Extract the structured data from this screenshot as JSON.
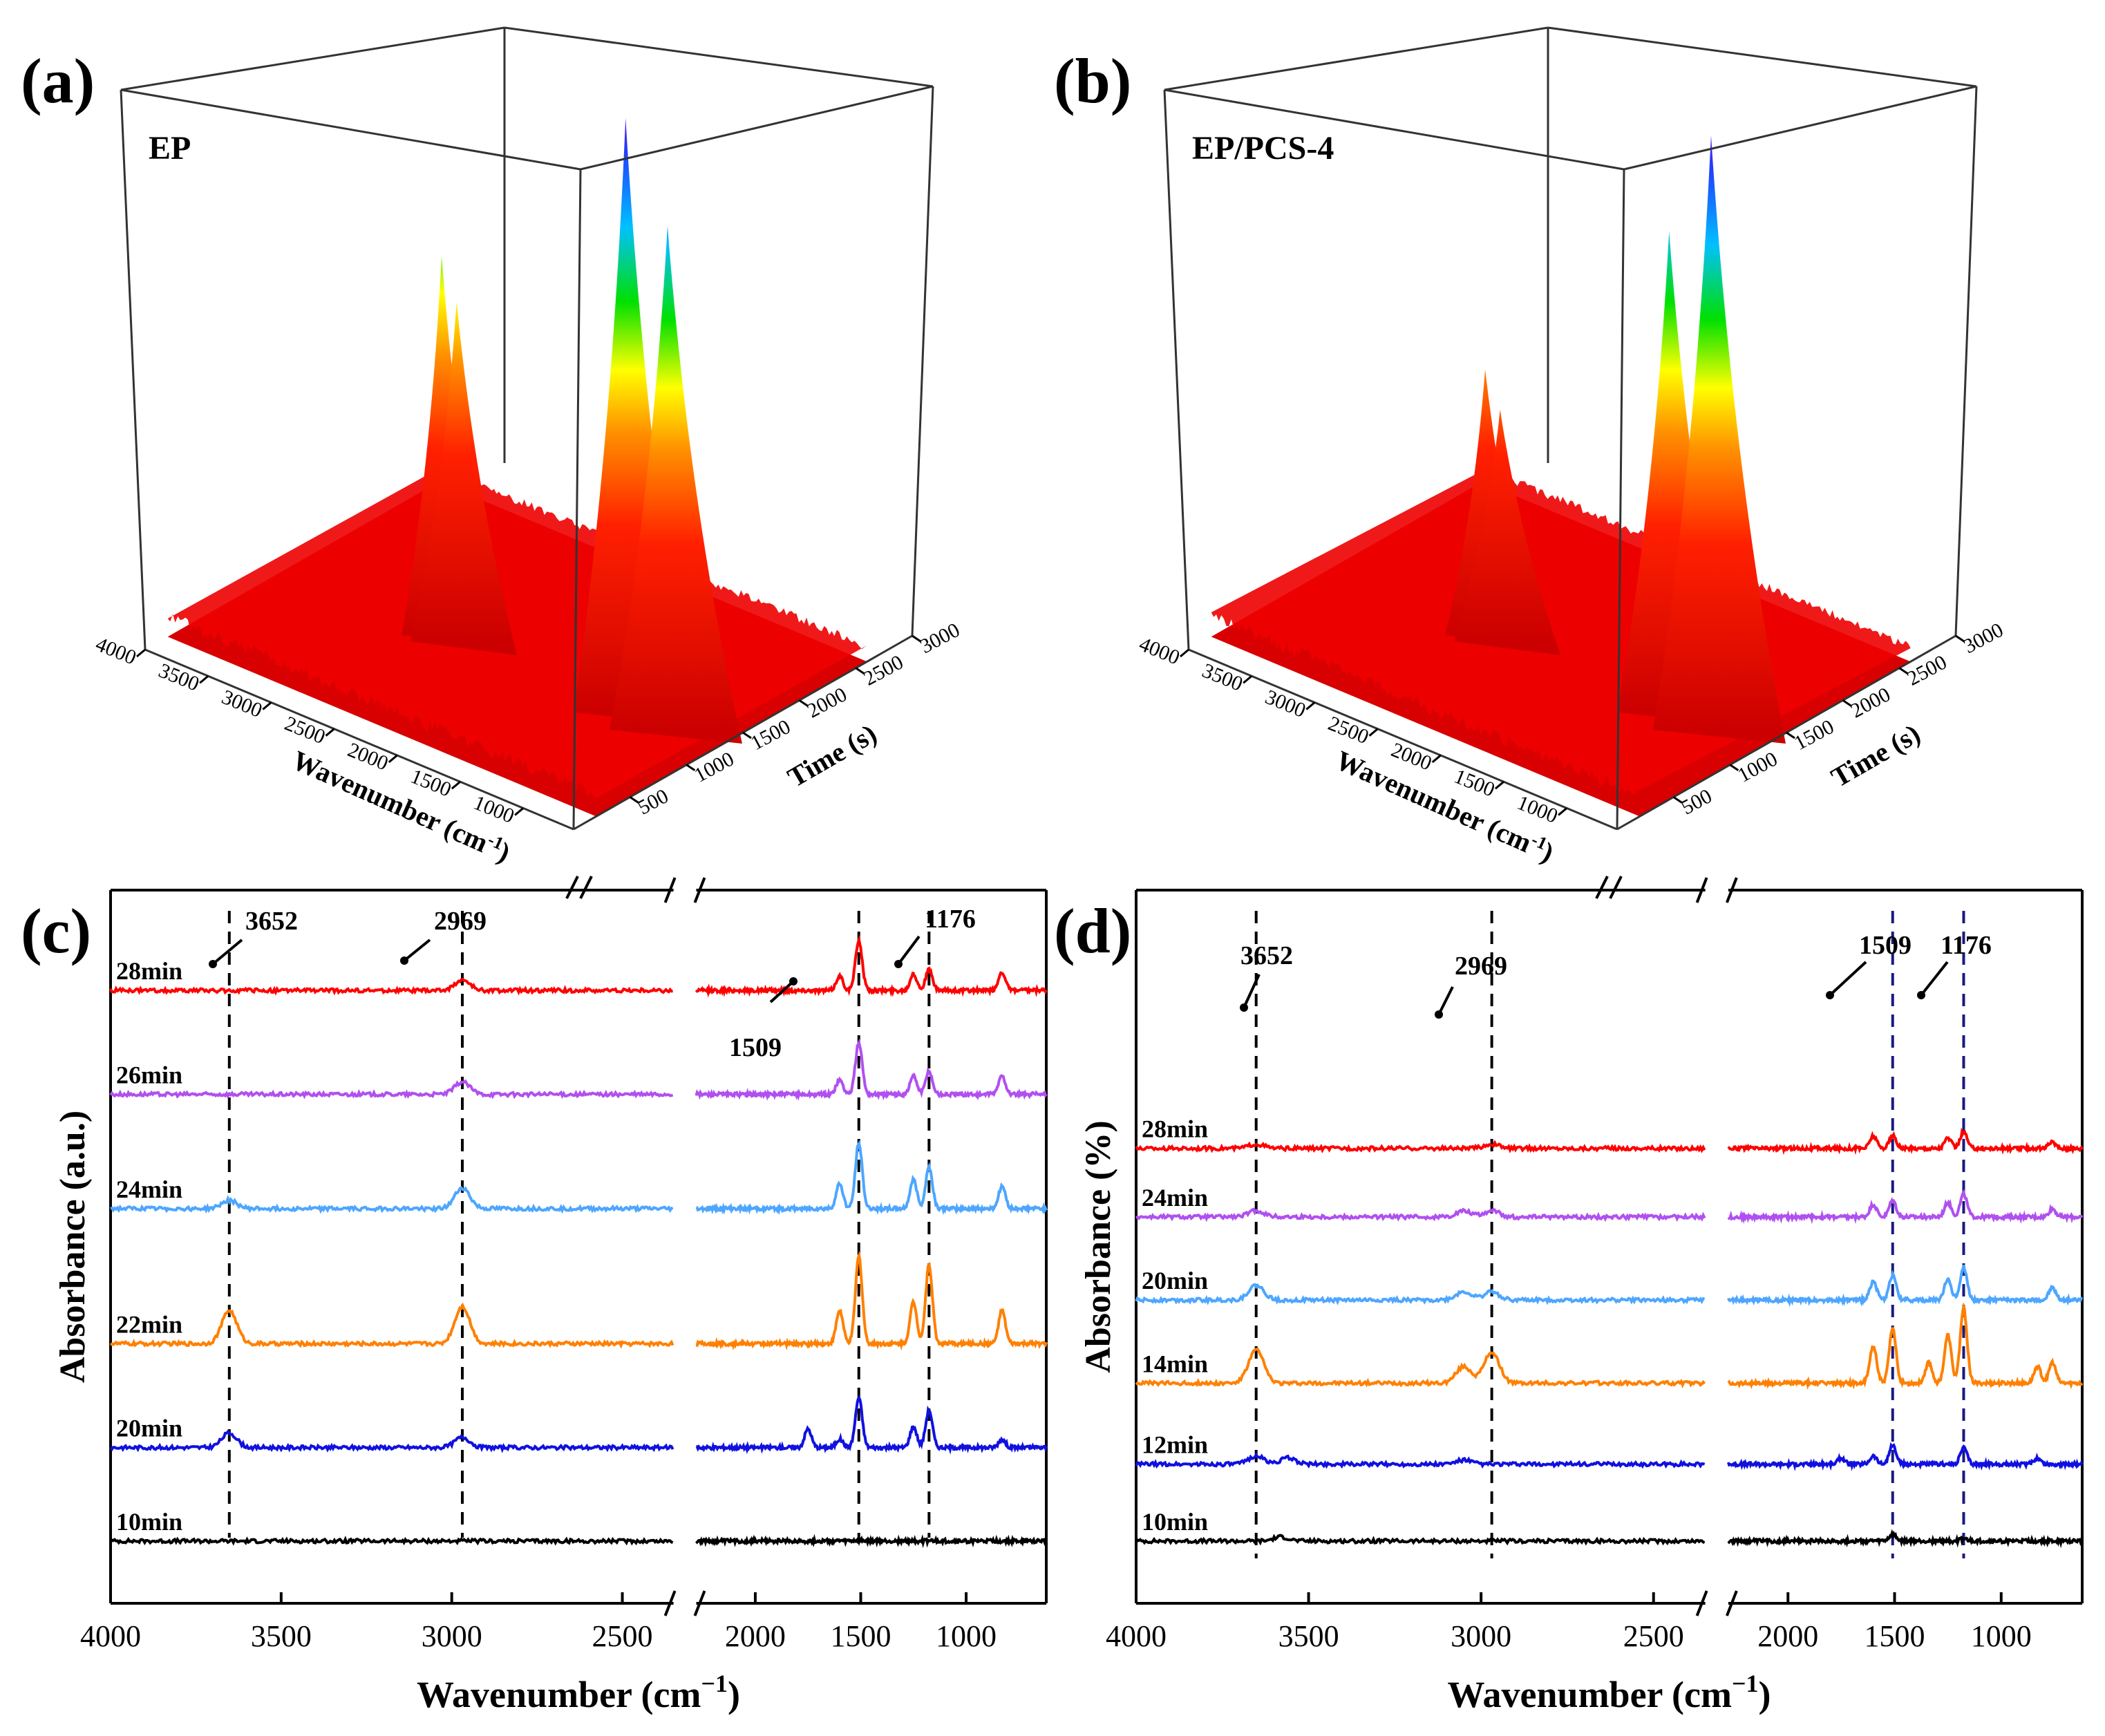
{
  "chart_data": [
    {
      "panel": "(a)",
      "type": "surface3d",
      "inset_label": "EP",
      "x_axis": {
        "label_main": "Wavenumber (cm",
        "label_sup": "-1",
        "label_end": ")",
        "ticks": [
          4000,
          3500,
          3000,
          2500,
          2000,
          1500,
          1000
        ]
      },
      "y_axis": {
        "label": "Time (s)",
        "ticks": [
          500,
          1000,
          1500,
          2000,
          2500,
          3000
        ]
      },
      "colormap": [
        "#cc0000",
        "#ff1a00",
        "#ff8c00",
        "#ffff00",
        "#00e000",
        "#00bfff",
        "#1e3cff",
        "#7a00d8"
      ],
      "peaks": [
        {
          "wavenumber": 2969,
          "relative_height": 0.62
        },
        {
          "wavenumber": 2850,
          "relative_height": 0.55
        },
        {
          "wavenumber": 1509,
          "relative_height": 1.0
        },
        {
          "wavenumber": 1176,
          "relative_height": 0.84
        }
      ]
    },
    {
      "panel": "(b)",
      "type": "surface3d",
      "inset_label": "EP/PCS-4",
      "x_axis": {
        "label_main": "Wavenumber (cm",
        "label_sup": "-1",
        "label_end": ")",
        "ticks": [
          4000,
          3500,
          3000,
          2500,
          2000,
          1500,
          1000
        ]
      },
      "y_axis": {
        "label": "Time (s)",
        "ticks": [
          500,
          1000,
          1500,
          2000,
          2500,
          3000
        ]
      },
      "colormap": [
        "#cc0000",
        "#ff1a00",
        "#ff8c00",
        "#ffff00",
        "#00e000",
        "#00bfff",
        "#1e3cff",
        "#7a00d8"
      ],
      "peaks": [
        {
          "wavenumber": 2969,
          "relative_height": 0.42
        },
        {
          "wavenumber": 2850,
          "relative_height": 0.36
        },
        {
          "wavenumber": 1509,
          "relative_height": 0.8
        },
        {
          "wavenumber": 1176,
          "relative_height": 1.0
        }
      ]
    },
    {
      "panel": "(c)",
      "type": "line",
      "xlabel_main": "Wavenumber (cm",
      "xlabel_sup": "−1",
      "xlabel_end": ")",
      "ylabel": "Absorbance (a.u.)",
      "x_ticks": [
        4000,
        3500,
        3000,
        2500,
        2000,
        1500,
        1000
      ],
      "x_break": [
        2350,
        2280
      ],
      "xlim": [
        4000,
        620
      ],
      "markers": [
        3652,
        2969,
        1509,
        1176
      ],
      "annotations": [
        "3652",
        "2969",
        "1509",
        "1176"
      ],
      "series": [
        {
          "name": "10min",
          "color": "#000000",
          "baseline": 1.0,
          "peaks": [
            [
              1509,
              0.02
            ],
            [
              1176,
              0.01
            ]
          ]
        },
        {
          "name": "20min",
          "color": "#1010e0",
          "baseline": 5.5,
          "peaks": [
            [
              3652,
              0.7
            ],
            [
              2969,
              0.5
            ],
            [
              1750,
              0.9
            ],
            [
              1600,
              0.4
            ],
            [
              1509,
              2.4
            ],
            [
              1250,
              1.0
            ],
            [
              1176,
              1.8
            ],
            [
              830,
              0.4
            ]
          ]
        },
        {
          "name": "22min",
          "color": "#ff8000",
          "baseline": 10.5,
          "peaks": [
            [
              3652,
              1.6
            ],
            [
              2969,
              1.8
            ],
            [
              1600,
              1.6
            ],
            [
              1509,
              4.2
            ],
            [
              1250,
              2.0
            ],
            [
              1176,
              3.8
            ],
            [
              830,
              1.6
            ]
          ]
        },
        {
          "name": "24min",
          "color": "#4da6ff",
          "baseline": 17.0,
          "peaks": [
            [
              3652,
              0.4
            ],
            [
              2969,
              1.0
            ],
            [
              1600,
              1.2
            ],
            [
              1509,
              3.2
            ],
            [
              1250,
              1.4
            ],
            [
              1176,
              2.0
            ],
            [
              830,
              1.1
            ]
          ]
        },
        {
          "name": "26min",
          "color": "#b050f0",
          "baseline": 22.5,
          "peaks": [
            [
              2969,
              0.6
            ],
            [
              1600,
              0.7
            ],
            [
              1509,
              2.5
            ],
            [
              1250,
              0.9
            ],
            [
              1176,
              1.1
            ],
            [
              830,
              0.9
            ]
          ]
        },
        {
          "name": "28min",
          "color": "#ff0000",
          "baseline": 27.5,
          "peaks": [
            [
              2969,
              0.5
            ],
            [
              1600,
              0.7
            ],
            [
              1509,
              2.4
            ],
            [
              1250,
              0.8
            ],
            [
              1176,
              1.0
            ],
            [
              830,
              0.9
            ]
          ]
        }
      ]
    },
    {
      "panel": "(d)",
      "type": "line",
      "xlabel_main": "Wavenumber (cm",
      "xlabel_sup": "−1",
      "xlabel_end": ")",
      "ylabel": "Absorbance (%)",
      "x_ticks": [
        4000,
        3500,
        3000,
        2500,
        2000,
        1500,
        1000
      ],
      "x_break": [
        2350,
        2280
      ],
      "xlim": [
        4000,
        620
      ],
      "markers": [
        3652,
        2969,
        1509,
        1176
      ],
      "annotations": [
        "3652",
        "2969",
        "1509",
        "1176"
      ],
      "series": [
        {
          "name": "10min",
          "color": "#000000",
          "baseline": 1.0,
          "peaks": [
            [
              3580,
              0.2
            ],
            [
              1509,
              0.3
            ],
            [
              1176,
              0.1
            ]
          ]
        },
        {
          "name": "12min",
          "color": "#1010e0",
          "baseline": 4.7,
          "peaks": [
            [
              3652,
              0.4
            ],
            [
              3560,
              0.3
            ],
            [
              3050,
              0.2
            ],
            [
              1750,
              0.3
            ],
            [
              1600,
              0.4
            ],
            [
              1509,
              0.9
            ],
            [
              1176,
              0.8
            ],
            [
              830,
              0.3
            ]
          ]
        },
        {
          "name": "14min",
          "color": "#ff8000",
          "baseline": 8.6,
          "peaks": [
            [
              3652,
              1.6
            ],
            [
              3050,
              0.8
            ],
            [
              2969,
              1.5
            ],
            [
              1600,
              1.8
            ],
            [
              1509,
              2.6
            ],
            [
              1340,
              1.0
            ],
            [
              1250,
              2.3
            ],
            [
              1176,
              3.6
            ],
            [
              830,
              0.8
            ],
            [
              760,
              1.0
            ]
          ]
        },
        {
          "name": "20min",
          "color": "#4da6ff",
          "baseline": 12.6,
          "peaks": [
            [
              3652,
              0.7
            ],
            [
              3050,
              0.4
            ],
            [
              2969,
              0.4
            ],
            [
              1600,
              0.9
            ],
            [
              1509,
              1.2
            ],
            [
              1250,
              1.0
            ],
            [
              1176,
              1.6
            ],
            [
              760,
              0.6
            ]
          ]
        },
        {
          "name": "24min",
          "color": "#b050f0",
          "baseline": 16.6,
          "peaks": [
            [
              3652,
              0.3
            ],
            [
              3050,
              0.3
            ],
            [
              2969,
              0.3
            ],
            [
              1600,
              0.6
            ],
            [
              1509,
              0.8
            ],
            [
              1250,
              0.7
            ],
            [
              1176,
              1.1
            ],
            [
              760,
              0.4
            ]
          ]
        },
        {
          "name": "28min",
          "color": "#ff0000",
          "baseline": 19.9,
          "peaks": [
            [
              3652,
              0.2
            ],
            [
              2969,
              0.2
            ],
            [
              1600,
              0.6
            ],
            [
              1509,
              0.6
            ],
            [
              1250,
              0.5
            ],
            [
              1176,
              0.8
            ],
            [
              760,
              0.3
            ]
          ]
        }
      ]
    }
  ]
}
